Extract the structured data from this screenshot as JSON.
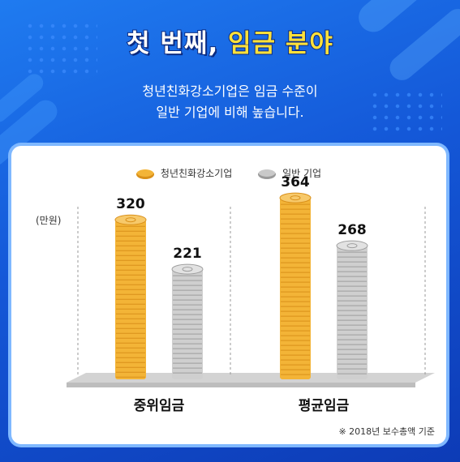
{
  "header": {
    "title_part1": "첫 번째,",
    "title_part2": "임금 분야",
    "subtitle_line1": "청년친화강소기업은 임금 수준이",
    "subtitle_line2": "일반 기업에 비해 높습니다."
  },
  "chart_data": {
    "type": "bar",
    "categories": [
      "중위임금",
      "평균임금"
    ],
    "series": [
      {
        "name": "청년친화강소기업",
        "values": [
          320,
          364
        ],
        "color": "#f3b437"
      },
      {
        "name": "일반 기업",
        "values": [
          221,
          268
        ],
        "color": "#c9c9c9"
      }
    ],
    "ylabel": "(만원)",
    "ylim": [
      0,
      400
    ],
    "legend_position": "top",
    "grid": false,
    "data_labels": true
  },
  "footnote": "※ 2018년 보수총액 기준"
}
